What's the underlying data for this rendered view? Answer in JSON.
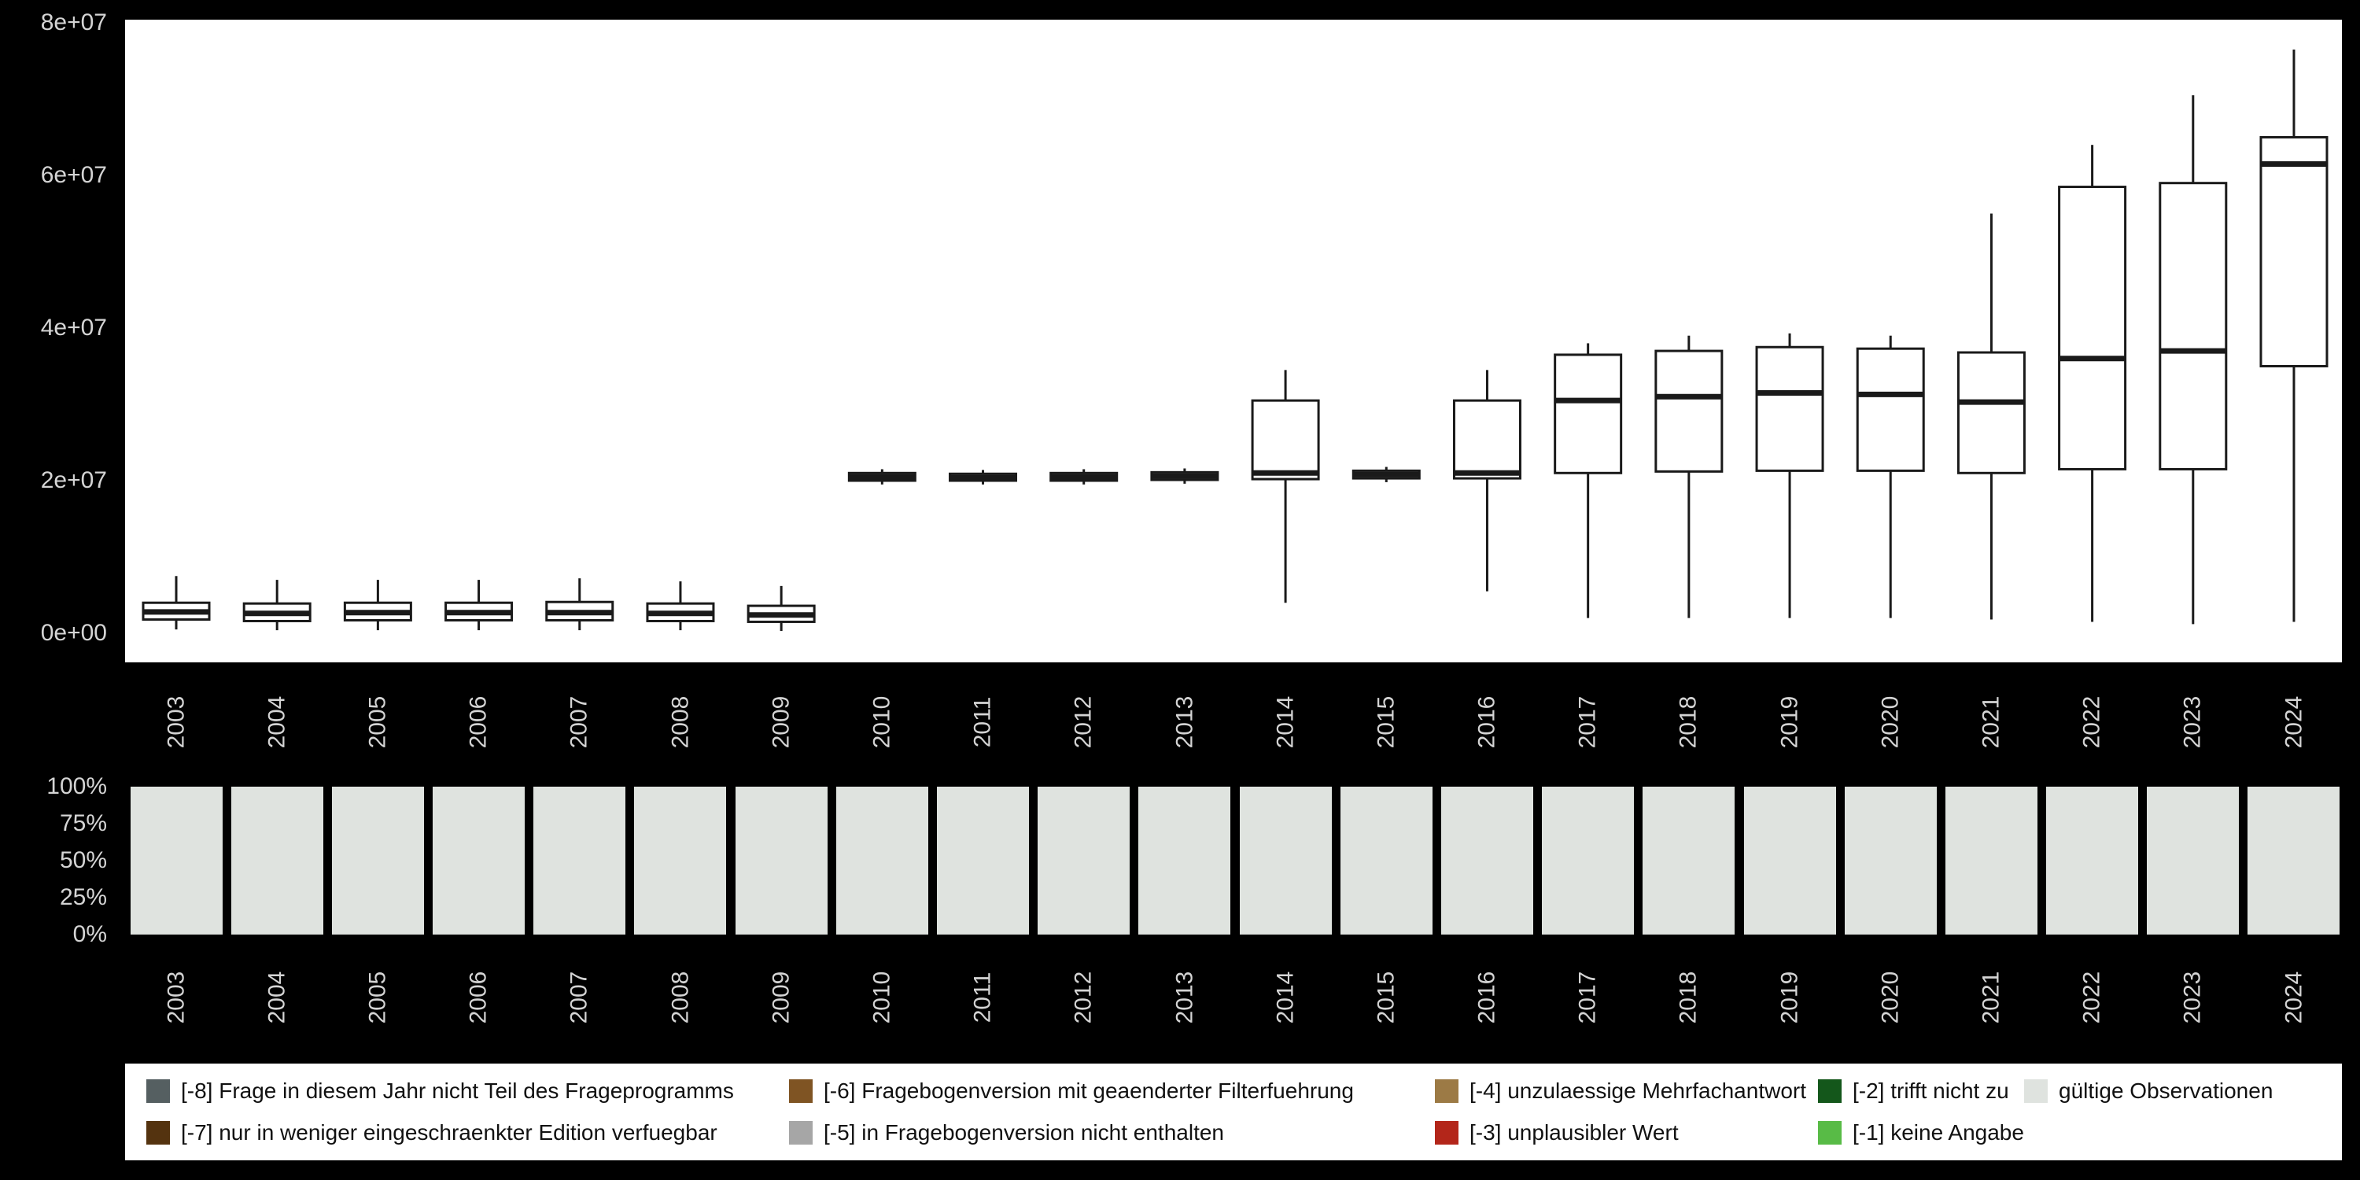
{
  "page": {
    "background": "#000000",
    "panel_background": "#ffffff",
    "axis_text_color": "#d4d4d4"
  },
  "chart_data": [
    {
      "type": "boxplot",
      "title": "",
      "xlabel": "",
      "ylabel": "",
      "categories": [
        "2003",
        "2004",
        "2005",
        "2006",
        "2007",
        "2008",
        "2009",
        "2010",
        "2011",
        "2012",
        "2013",
        "2014",
        "2015",
        "2016",
        "2017",
        "2018",
        "2019",
        "2020",
        "2021",
        "2022",
        "2023",
        "2024"
      ],
      "ylim": [
        0,
        82000000
      ],
      "ytick_labels": [
        "0e+00",
        "2e+07",
        "4e+07",
        "6e+07",
        "8e+07"
      ],
      "ytick_values": [
        0,
        20000000,
        40000000,
        60000000,
        80000000
      ],
      "grid": false,
      "box_fill": "#ffffff",
      "box_stroke": "#1a1a1a",
      "boxes": [
        {
          "year": "2003",
          "min": 500000,
          "q1": 1800000,
          "median": 2800000,
          "q3": 4000000,
          "max": 7500000
        },
        {
          "year": "2004",
          "min": 400000,
          "q1": 1600000,
          "median": 2600000,
          "q3": 3900000,
          "max": 7000000
        },
        {
          "year": "2005",
          "min": 400000,
          "q1": 1700000,
          "median": 2700000,
          "q3": 4000000,
          "max": 7000000
        },
        {
          "year": "2006",
          "min": 400000,
          "q1": 1700000,
          "median": 2700000,
          "q3": 4000000,
          "max": 7000000
        },
        {
          "year": "2007",
          "min": 400000,
          "q1": 1700000,
          "median": 2700000,
          "q3": 4100000,
          "max": 7200000
        },
        {
          "year": "2008",
          "min": 400000,
          "q1": 1600000,
          "median": 2600000,
          "q3": 3900000,
          "max": 6800000
        },
        {
          "year": "2009",
          "min": 300000,
          "q1": 1500000,
          "median": 2400000,
          "q3": 3600000,
          "max": 6200000
        },
        {
          "year": "2010",
          "min": 19500000,
          "q1": 20000000,
          "median": 20500000,
          "q3": 21000000,
          "max": 21500000
        },
        {
          "year": "2011",
          "min": 19500000,
          "q1": 20000000,
          "median": 20400000,
          "q3": 20900000,
          "max": 21400000
        },
        {
          "year": "2012",
          "min": 19500000,
          "q1": 20000000,
          "median": 20500000,
          "q3": 21000000,
          "max": 21500000
        },
        {
          "year": "2013",
          "min": 19600000,
          "q1": 20100000,
          "median": 20600000,
          "q3": 21100000,
          "max": 21600000
        },
        {
          "year": "2014",
          "min": 4000000,
          "q1": 20200000,
          "median": 21000000,
          "q3": 30500000,
          "max": 34500000
        },
        {
          "year": "2015",
          "min": 19800000,
          "q1": 20300000,
          "median": 20800000,
          "q3": 21300000,
          "max": 21800000
        },
        {
          "year": "2016",
          "min": 5500000,
          "q1": 20300000,
          "median": 21000000,
          "q3": 30500000,
          "max": 34500000
        },
        {
          "year": "2017",
          "min": 2000000,
          "q1": 21000000,
          "median": 30500000,
          "q3": 36500000,
          "max": 38000000
        },
        {
          "year": "2018",
          "min": 2000000,
          "q1": 21200000,
          "median": 31000000,
          "q3": 37000000,
          "max": 39000000
        },
        {
          "year": "2019",
          "min": 2000000,
          "q1": 21300000,
          "median": 31500000,
          "q3": 37500000,
          "max": 39300000
        },
        {
          "year": "2020",
          "min": 2000000,
          "q1": 21300000,
          "median": 31300000,
          "q3": 37300000,
          "max": 39000000
        },
        {
          "year": "2021",
          "min": 1800000,
          "q1": 21000000,
          "median": 30300000,
          "q3": 36800000,
          "max": 55000000
        },
        {
          "year": "2022",
          "min": 1500000,
          "q1": 21500000,
          "median": 36000000,
          "q3": 58500000,
          "max": 64000000
        },
        {
          "year": "2023",
          "min": 1200000,
          "q1": 21500000,
          "median": 37000000,
          "q3": 59000000,
          "max": 70500000
        },
        {
          "year": "2024",
          "min": 1500000,
          "q1": 35000000,
          "median": 61500000,
          "q3": 65000000,
          "max": 76500000
        }
      ]
    },
    {
      "type": "bar",
      "stacked_percent": true,
      "title": "",
      "xlabel": "",
      "ylabel": "",
      "categories": [
        "2003",
        "2004",
        "2005",
        "2006",
        "2007",
        "2008",
        "2009",
        "2010",
        "2011",
        "2012",
        "2013",
        "2014",
        "2015",
        "2016",
        "2017",
        "2018",
        "2019",
        "2020",
        "2021",
        "2022",
        "2023",
        "2024"
      ],
      "ytick_labels": [
        "0%",
        "25%",
        "50%",
        "75%",
        "100%"
      ],
      "ytick_values": [
        0,
        25,
        50,
        75,
        100
      ],
      "ylim": [
        0,
        100
      ],
      "series": [
        {
          "name": "gültige Observationen",
          "color": "#dfe3df",
          "values": [
            100,
            100,
            100,
            100,
            100,
            100,
            100,
            100,
            100,
            100,
            100,
            100,
            100,
            100,
            100,
            100,
            100,
            100,
            100,
            100,
            100,
            100
          ]
        }
      ]
    }
  ],
  "legend": {
    "items": [
      {
        "code": "-8",
        "label": "[-8] Frage in diesem Jahr nicht Teil des Frageprogramms",
        "color": "#555f61"
      },
      {
        "code": "-6",
        "label": "[-6] Fragebogenversion mit geaenderter Filterfuehrung",
        "color": "#7f5423"
      },
      {
        "code": "-4",
        "label": "[-4] unzulaessige Mehrfachantwort",
        "color": "#9c7a45"
      },
      {
        "code": "-2",
        "label": "[-2] trifft nicht zu",
        "color": "#14571b"
      },
      {
        "code": "valid",
        "label": "gültige Observationen",
        "color": "#dfe3df"
      },
      {
        "code": "-7",
        "label": "[-7] nur in weniger eingeschraenkter Edition verfuegbar",
        "color": "#54330f"
      },
      {
        "code": "-5",
        "label": "[-5] in Fragebogenversion nicht enthalten",
        "color": "#a6a6a6"
      },
      {
        "code": "-3",
        "label": "[-3] unplausibler Wert",
        "color": "#b3261a"
      },
      {
        "code": "-1",
        "label": "[-1] keine Angabe",
        "color": "#58bb46"
      }
    ]
  }
}
